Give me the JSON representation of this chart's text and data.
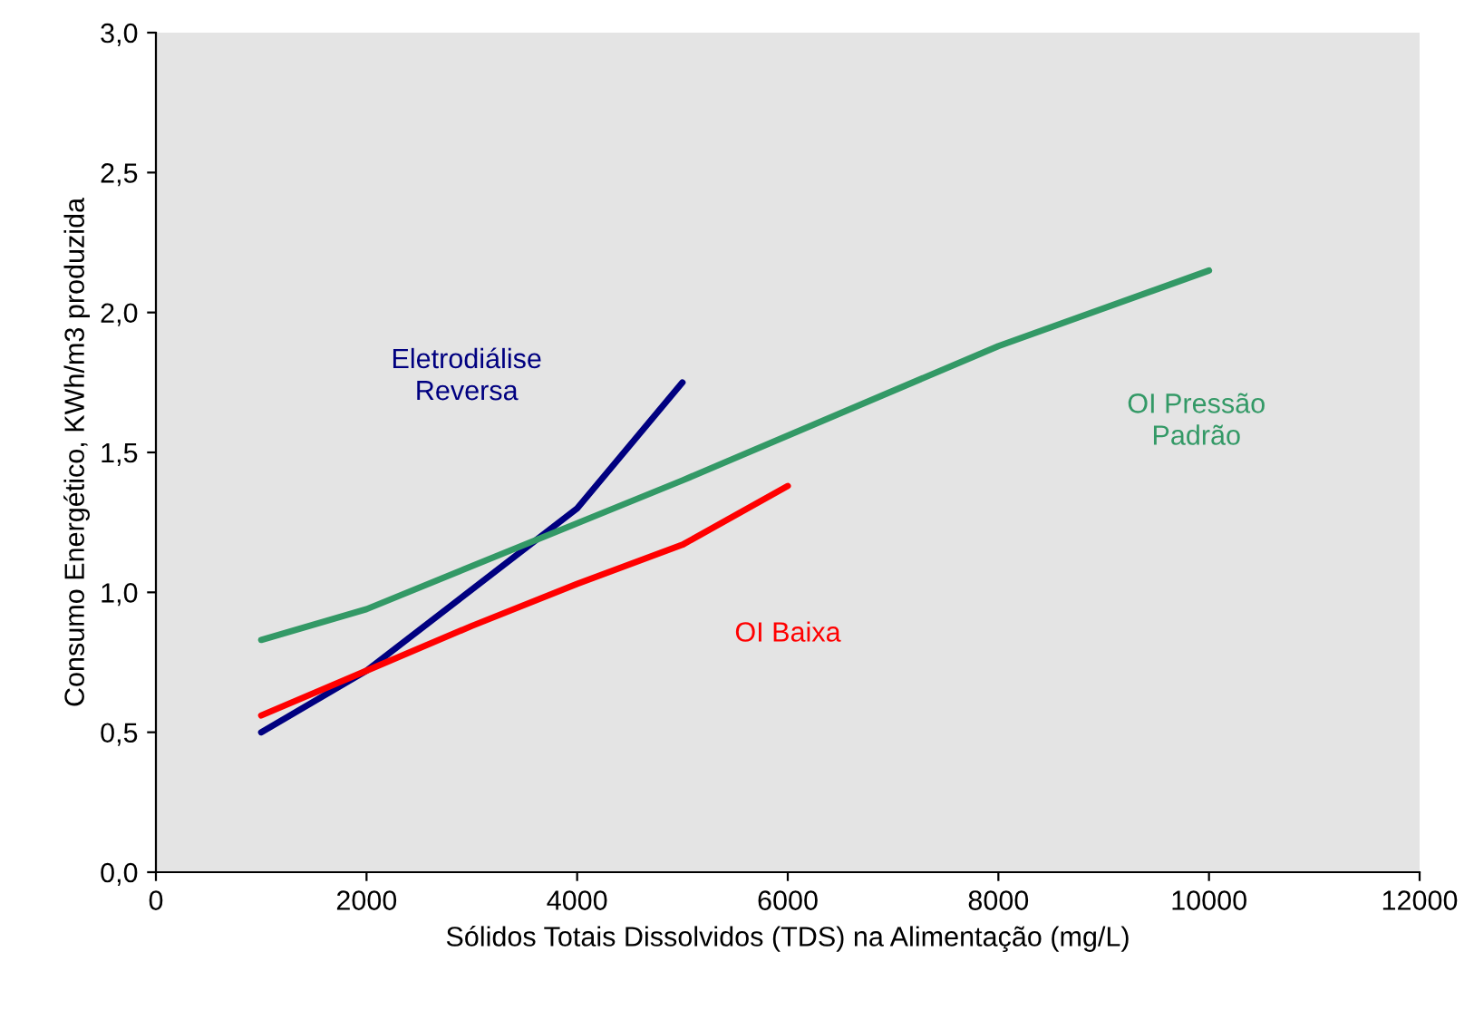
{
  "chart_data": {
    "type": "line",
    "xlabel": "Sólidos Totais Dissolvidos (TDS) na Alimentação (mg/L)",
    "ylabel": "Consumo Energético, KWh/m3 produzida",
    "series": [
      {
        "name": "Eletrodiálise\nReversa",
        "color": "#000080",
        "x": [
          1000,
          2000,
          4000,
          5000
        ],
        "values": [
          0.5,
          0.72,
          1.3,
          1.75
        ]
      },
      {
        "name": "OI Baixa",
        "color": "#ff0000",
        "x": [
          1000,
          2000,
          3000,
          4000,
          5000,
          6000
        ],
        "values": [
          0.56,
          0.72,
          0.88,
          1.03,
          1.17,
          1.38
        ]
      },
      {
        "name": "OI Pressão\nPadrão",
        "color": "#339966",
        "x": [
          1000,
          2000,
          5000,
          8000,
          10000
        ],
        "values": [
          0.83,
          0.94,
          1.4,
          1.88,
          2.15
        ]
      }
    ],
    "xlim": [
      0,
      12000
    ],
    "xticks": [
      0,
      2000,
      4000,
      6000,
      8000,
      10000,
      12000
    ],
    "ylim": [
      0,
      3
    ],
    "yticks": [
      {
        "value": 0,
        "label": "0,0"
      },
      {
        "value": 0.5,
        "label": "0,5"
      },
      {
        "value": 1,
        "label": "1,0"
      },
      {
        "value": 1.5,
        "label": "1,5"
      },
      {
        "value": 2,
        "label": "2,0"
      },
      {
        "value": 2.5,
        "label": "2,5"
      },
      {
        "value": 3,
        "label": "3,0"
      }
    ],
    "grid": false,
    "marker": "none",
    "line_style": "solid"
  }
}
